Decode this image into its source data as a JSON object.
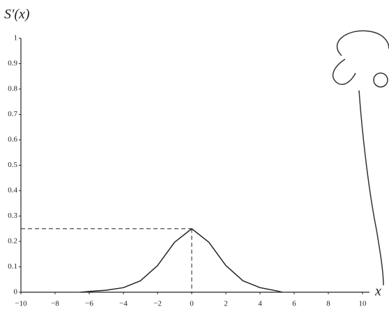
{
  "chart_data": {
    "type": "line",
    "x_label": "x",
    "y_label": "S′(x)",
    "x": [
      -6.5,
      -6,
      -5,
      -4,
      -3,
      -2,
      -1,
      0,
      1,
      2,
      3,
      4,
      5,
      5.3
    ],
    "series": [
      {
        "color": "#222",
        "values": [
          0,
          0.003,
          0.008,
          0.018,
          0.045,
          0.105,
          0.197,
          0.25,
          0.197,
          0.105,
          0.045,
          0.018,
          0.005,
          0
        ]
      }
    ],
    "xlim": [
      -10,
      10
    ],
    "xticks": [
      {
        "value": -10,
        "label": "−10"
      },
      {
        "value": -8,
        "label": "−8"
      },
      {
        "value": -6,
        "label": "−6"
      },
      {
        "value": -4,
        "label": "−4"
      },
      {
        "value": -2,
        "label": "−2"
      },
      0,
      2,
      4,
      6,
      8,
      10
    ],
    "ylim": [
      0,
      1
    ],
    "yticks": [
      0,
      0.1,
      0.2,
      0.3,
      0.4,
      0.5,
      0.6,
      0.7,
      0.8,
      0.9,
      1
    ],
    "guide": {
      "x": 0,
      "y": 0.25
    }
  }
}
